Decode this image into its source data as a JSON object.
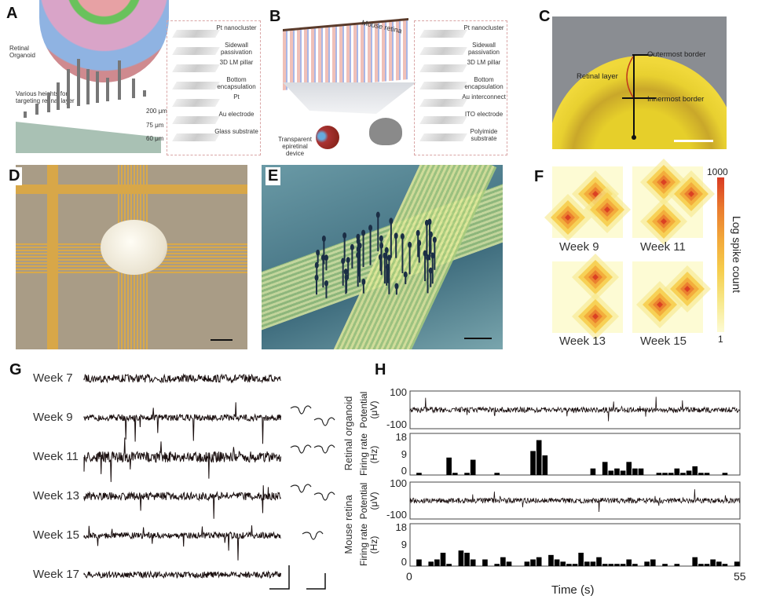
{
  "panels": {
    "A": {
      "label": "A",
      "organoid_label": "Retinal Organoid",
      "heights_label": "Various heights for targeting retinal layer",
      "heights": [
        "200 μm",
        "75 μm",
        "60 μm"
      ],
      "layers": [
        "Pt nanocluster",
        "Sidewall passivation",
        "3D LM pillar",
        "Bottom encapsulation",
        "Pt",
        "Au electrode",
        "Glass substrate"
      ]
    },
    "B": {
      "label": "B",
      "retina_label": "Mouse retina",
      "device_label": "Transparent epiretinal device",
      "layers": [
        "Pt nanocluster",
        "Sidewall passivation",
        "3D LM pillar",
        "Bottom encapsulation",
        "Au interconnect",
        "ITO electrode",
        "Polyimide substrate"
      ]
    },
    "C": {
      "label": "C",
      "outer": "Outermost border",
      "retinal": "Retinal layer",
      "inner": "Innermost border"
    },
    "D": {
      "label": "D"
    },
    "E": {
      "label": "E"
    },
    "F": {
      "label": "F",
      "maps": [
        "Week  9",
        "Week 11",
        "Week 13",
        "Week 15"
      ],
      "colorbar_max": "1000",
      "colorbar_min": "1",
      "colorbar_label": "Log spike count",
      "colors": [
        "#fdfbd4",
        "#f7e88a",
        "#f6cd4c",
        "#f2a83a",
        "#ea7b2e",
        "#d93a22"
      ]
    },
    "G": {
      "label": "G",
      "weeks": [
        "Week  7",
        "Week  9",
        "Week 11",
        "Week 13",
        "Week 15",
        "Week 17"
      ]
    }
  },
  "chart_data": {
    "type": "bar",
    "panel_label": "H",
    "xlabel": "Time (s)",
    "xlim": [
      0,
      55
    ],
    "x_ticks": [
      "0",
      "55"
    ],
    "groups": [
      {
        "name": "Retinal organoid",
        "potential_label": "Potential (μV)",
        "potential_ticks": [
          "100",
          "-100"
        ],
        "rate_label": "Firing rate (Hz)",
        "rate_ticks": [
          "18",
          "9",
          "0"
        ],
        "ylim": [
          0,
          18
        ],
        "values": [
          0,
          1,
          0,
          0,
          0,
          0,
          8,
          1,
          0,
          1,
          7,
          0,
          0,
          0,
          1,
          0,
          0,
          0,
          0,
          0,
          11,
          16,
          9,
          0,
          0,
          0,
          0,
          0,
          0,
          0,
          3,
          0,
          6,
          2,
          3,
          2,
          6,
          3,
          3,
          0,
          0,
          1,
          1,
          1,
          3,
          1,
          2,
          4,
          1,
          1,
          0,
          0,
          1,
          0,
          0
        ]
      },
      {
        "name": "Mouse retina",
        "potential_label": "Potential (μV)",
        "potential_ticks": [
          "100",
          "-100"
        ],
        "rate_label": "Firing rate (Hz)",
        "rate_ticks": [
          "18",
          "9",
          "0"
        ],
        "ylim": [
          0,
          18
        ],
        "values": [
          0,
          3,
          0,
          2,
          3,
          6,
          1,
          0,
          7,
          6,
          3,
          0,
          3,
          0,
          1,
          4,
          2,
          0,
          0,
          2,
          3,
          4,
          0,
          5,
          3,
          2,
          1,
          1,
          6,
          2,
          2,
          4,
          1,
          1,
          1,
          1,
          3,
          1,
          0,
          2,
          3,
          0,
          1,
          0,
          1,
          0,
          0,
          4,
          1,
          1,
          3,
          2,
          1,
          0,
          2
        ]
      }
    ]
  }
}
